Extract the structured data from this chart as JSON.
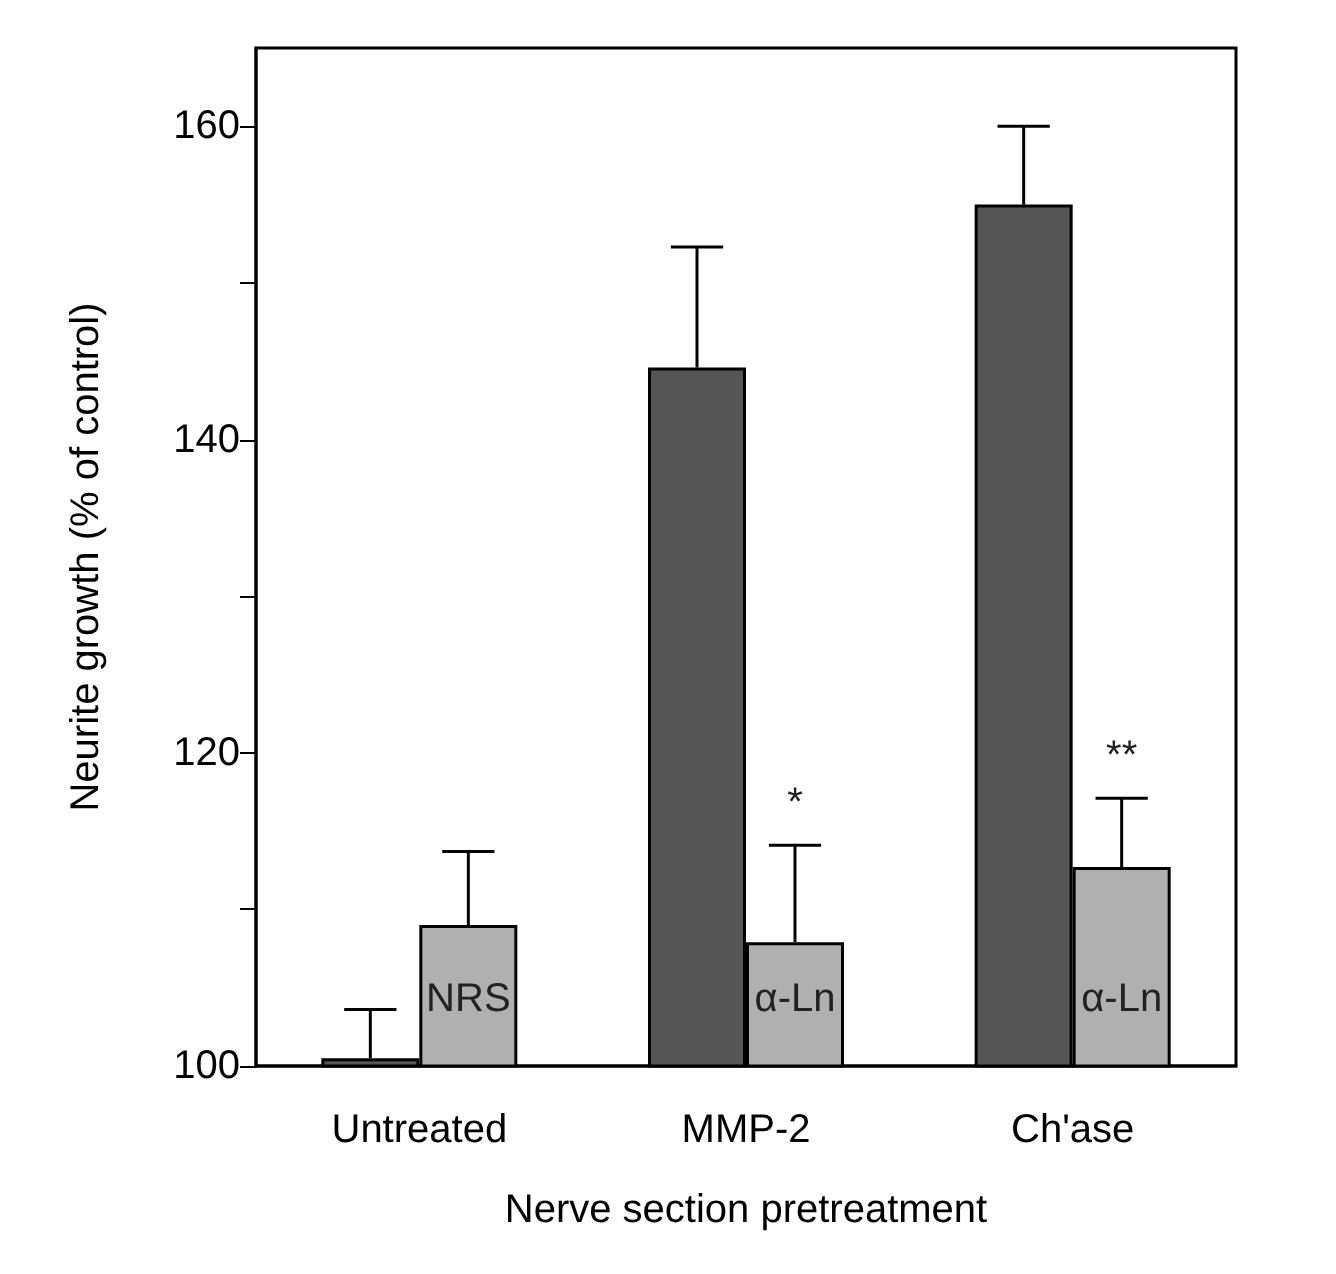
{
  "chart_data": {
    "type": "bar",
    "xlabel": "Nerve section pretreatment",
    "ylabel": "Neurite growth (% of control)",
    "categories": [
      "Untreated",
      "MMP-2",
      "Ch'ase"
    ],
    "series": [
      {
        "color": "#555555",
        "values": [
          100.5,
          144.6,
          155
        ],
        "errors": [
          [
            100.5,
            103.6
          ],
          [
            144.6,
            152.3
          ],
          [
            155,
            160
          ]
        ]
      },
      {
        "color": "#b0b0b0",
        "values": [
          109,
          107.9,
          112.7
        ],
        "errors": [
          [
            109,
            113.7
          ],
          [
            107.9,
            114.1
          ],
          [
            112.7,
            117.1
          ]
        ]
      }
    ],
    "ylim": [
      100,
      165
    ],
    "yticks": [
      100,
      {
        "value": 110,
        "label": null
      },
      120,
      {
        "value": 130,
        "label": null
      },
      140,
      {
        "value": 150,
        "label": null
      },
      160
    ],
    "annotations": [
      {
        "text": "NRS",
        "x": "Untreated",
        "y": 103
      },
      {
        "text": "α-Ln",
        "x": "MMP-2",
        "y": 103
      },
      {
        "text": "α-Ln",
        "x": "Ch'ase",
        "y": 103
      },
      {
        "text": "*",
        "x": "MMP-2",
        "y": 115.5
      },
      {
        "text": "**",
        "x": "Ch'ase",
        "y": 118.5
      }
    ],
    "grid": false
  }
}
